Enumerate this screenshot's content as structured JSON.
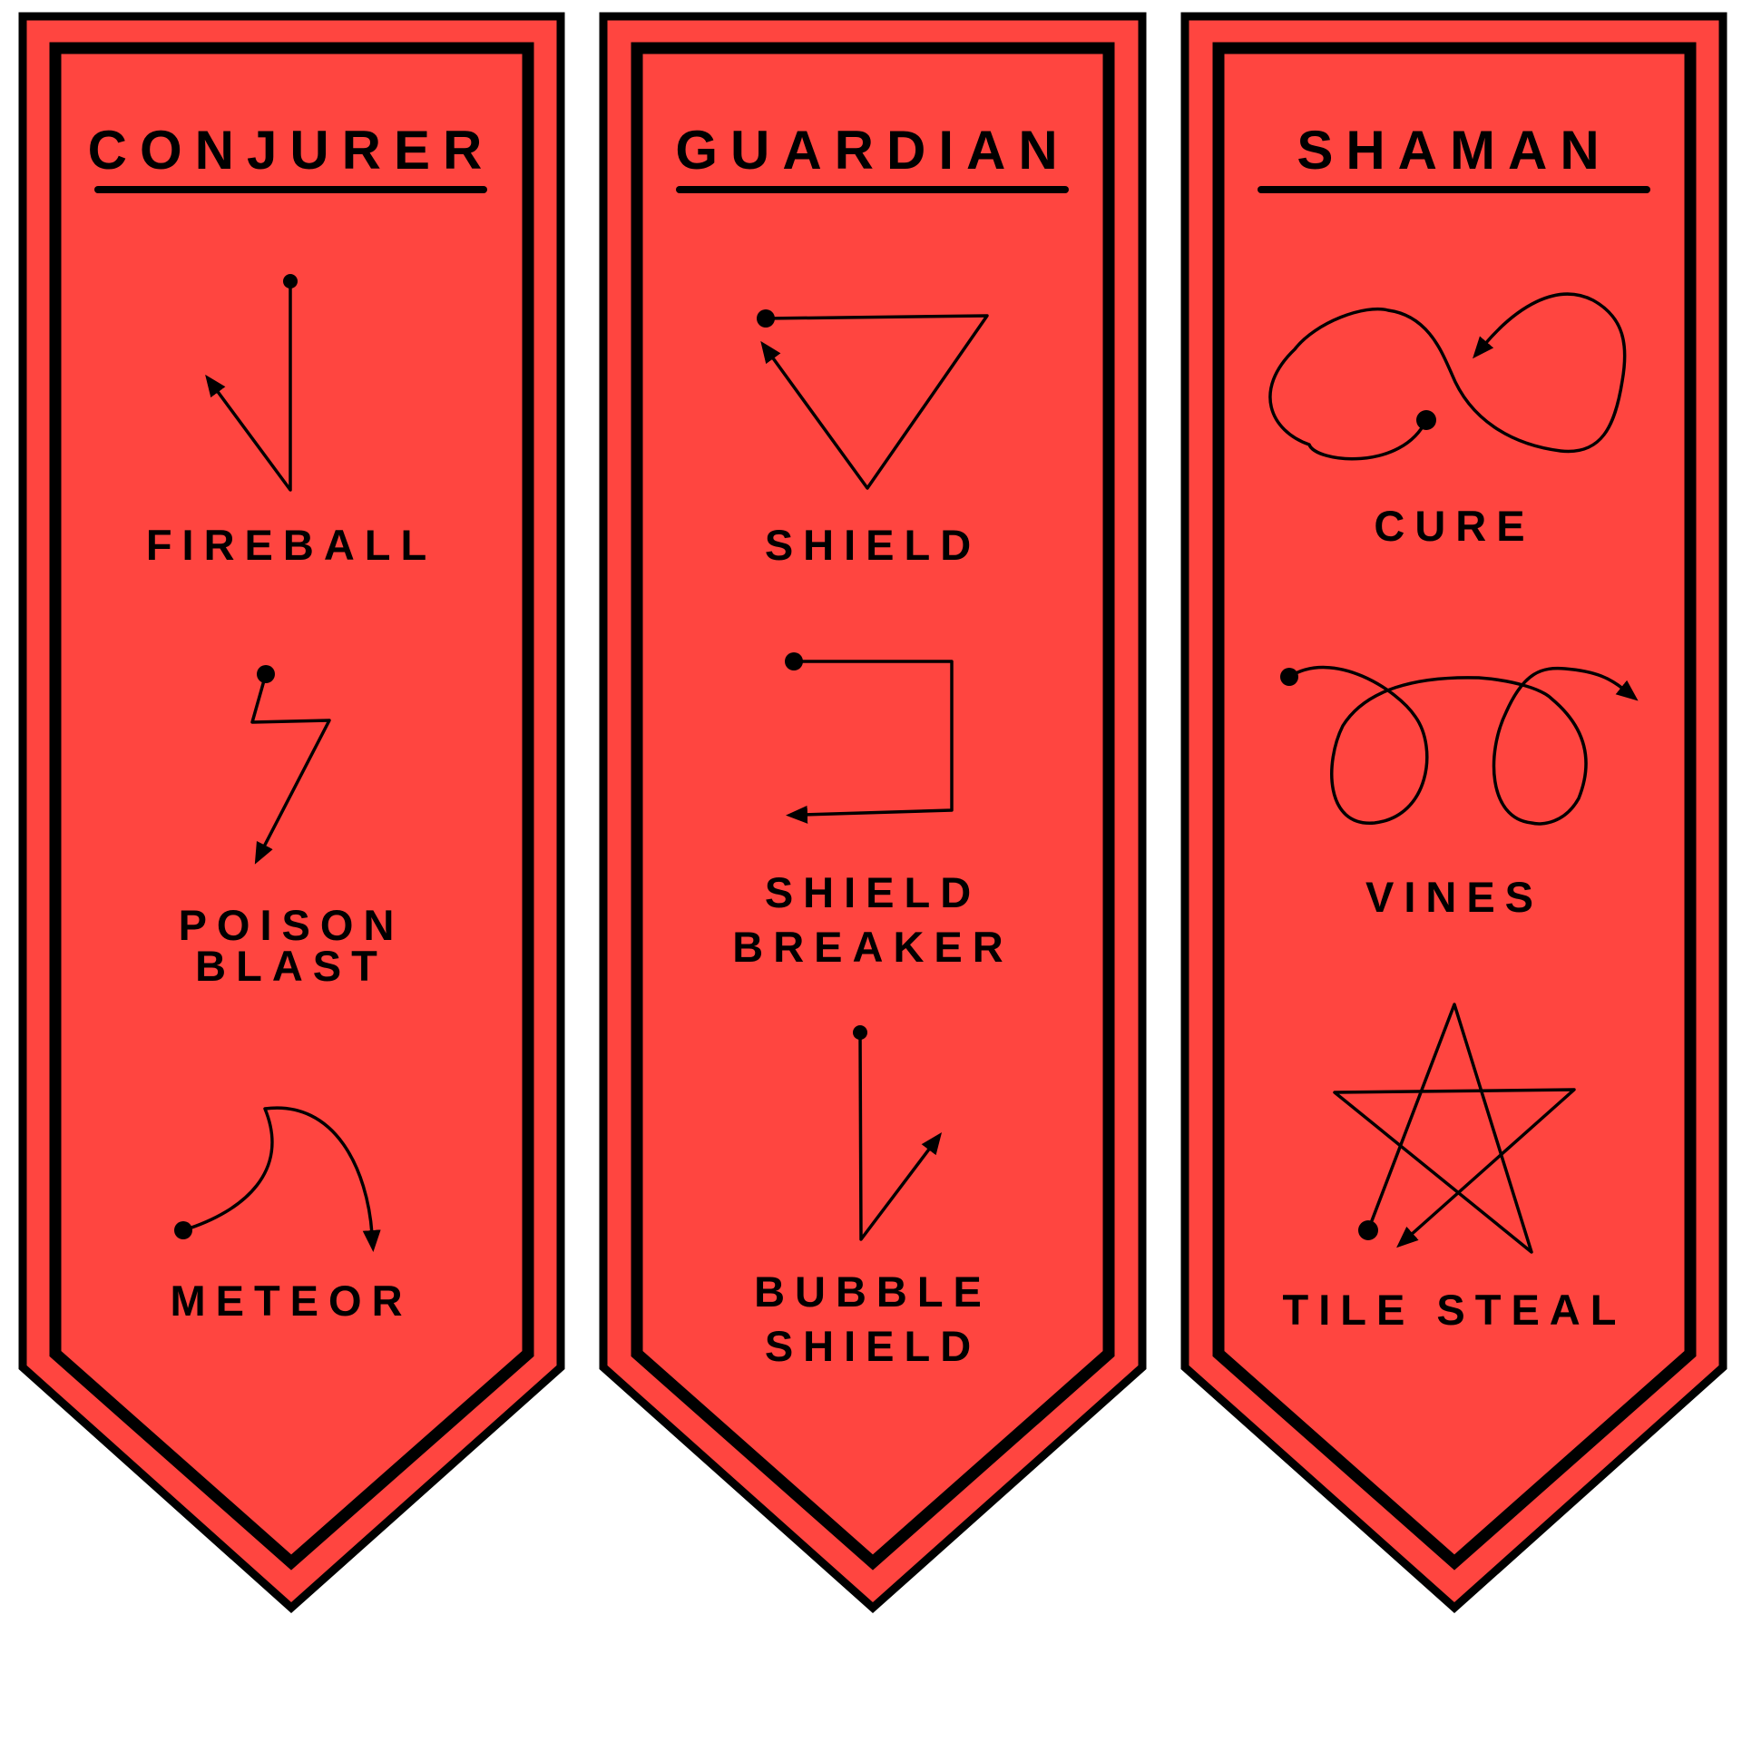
{
  "colors": {
    "banner": "#ff4540",
    "outline": "#000000",
    "background": "#ffffff"
  },
  "classes": [
    {
      "title": "CONJURER",
      "spells": [
        {
          "label_lines": [
            "FIREBALL"
          ],
          "icon": "fireball-gesture-icon"
        },
        {
          "label_lines": [
            "POISON",
            "BLAST"
          ],
          "icon": "poison-blast-gesture-icon"
        },
        {
          "label_lines": [
            "METEOR"
          ],
          "icon": "meteor-gesture-icon"
        }
      ]
    },
    {
      "title": "GUARDIAN",
      "spells": [
        {
          "label_lines": [
            "SHIELD"
          ],
          "icon": "shield-gesture-icon"
        },
        {
          "label_lines": [
            "SHIELD",
            "BREAKER"
          ],
          "icon": "shield-breaker-gesture-icon"
        },
        {
          "label_lines": [
            "BUBBLE",
            "SHIELD"
          ],
          "icon": "bubble-shield-gesture-icon"
        }
      ]
    },
    {
      "title": "SHAMAN",
      "spells": [
        {
          "label_lines": [
            "CURE"
          ],
          "icon": "cure-gesture-icon"
        },
        {
          "label_lines": [
            "VINES"
          ],
          "icon": "vines-gesture-icon"
        },
        {
          "label_lines": [
            "TILE STEAL"
          ],
          "icon": "tile-steal-gesture-icon"
        }
      ]
    }
  ]
}
